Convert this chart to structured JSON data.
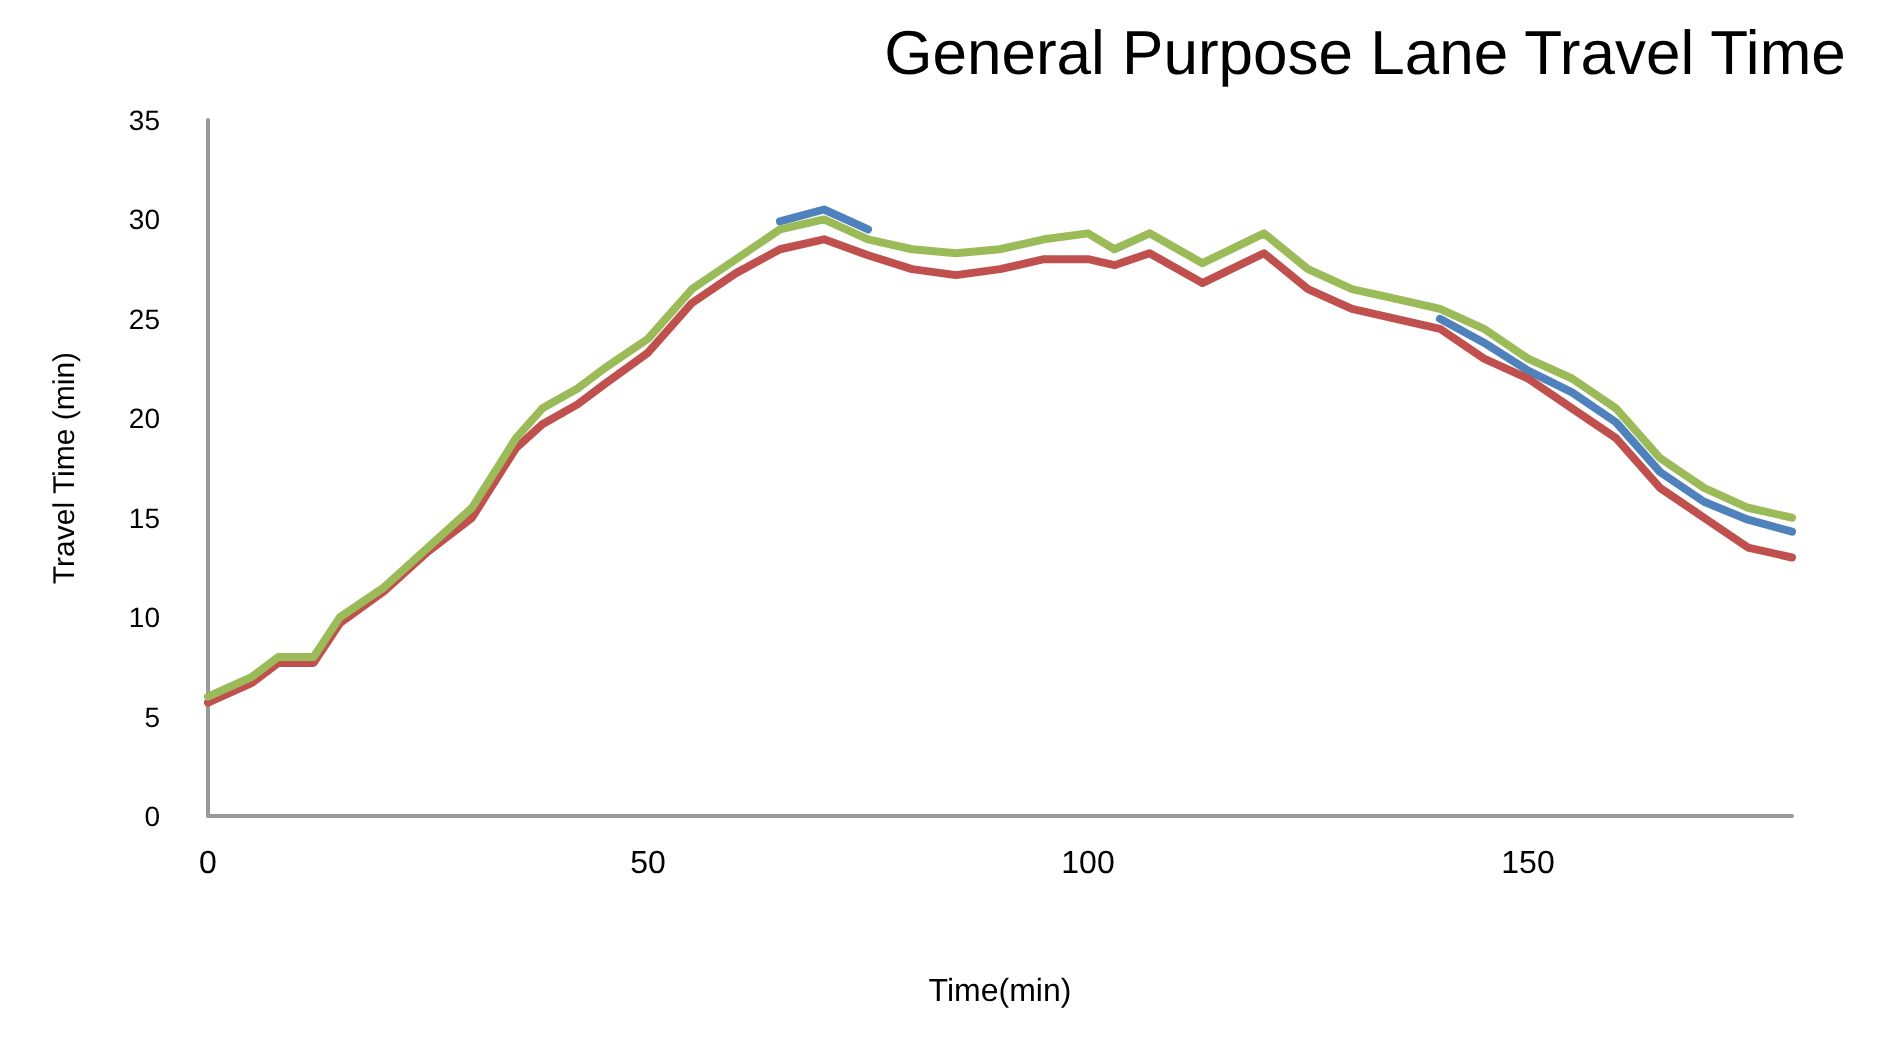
{
  "chart_data": {
    "type": "line",
    "title": "General Purpose Lane Travel Time",
    "xlabel": "Time(min)",
    "ylabel": "Travel Time (min)",
    "x": [
      0,
      5,
      8,
      12,
      15,
      20,
      25,
      30,
      35,
      38,
      42,
      45,
      50,
      55,
      60,
      65,
      70,
      75,
      80,
      85,
      90,
      95,
      100,
      103,
      107,
      113,
      120,
      125,
      130,
      135,
      140,
      145,
      150,
      155,
      160,
      165,
      170,
      175,
      180
    ],
    "series": [
      {
        "color": "#4f81bd",
        "values": [
          null,
          null,
          null,
          null,
          null,
          null,
          null,
          null,
          null,
          null,
          null,
          null,
          null,
          null,
          null,
          29.9,
          30.5,
          29.5,
          null,
          null,
          null,
          null,
          null,
          null,
          null,
          null,
          null,
          null,
          null,
          null,
          25,
          23.8,
          22.4,
          21.3,
          19.8,
          17.3,
          15.8,
          14.9,
          14.3
        ]
      },
      {
        "color": "#c0504d",
        "values": [
          5.7,
          6.7,
          7.7,
          7.7,
          9.7,
          11.3,
          13.3,
          15,
          18.5,
          19.7,
          20.7,
          21.7,
          23.3,
          25.8,
          27.3,
          28.5,
          29,
          28.2,
          27.5,
          27.2,
          27.5,
          28,
          28,
          27.7,
          28.3,
          26.8,
          28.3,
          26.5,
          25.5,
          25,
          24.5,
          23,
          22,
          20.5,
          19,
          16.5,
          15,
          13.5,
          13
        ]
      },
      {
        "color": "#9bbb59",
        "values": [
          6,
          7,
          8,
          8,
          10,
          11.5,
          13.5,
          15.5,
          19,
          20.5,
          21.5,
          22.5,
          24,
          26.5,
          28,
          29.5,
          30,
          29,
          28.5,
          28.3,
          28.5,
          29,
          29.3,
          28.5,
          29.3,
          27.8,
          29.3,
          27.5,
          26.5,
          26,
          25.5,
          24.5,
          23,
          22,
          20.5,
          18,
          16.5,
          15.5,
          15
        ]
      }
    ],
    "xlim": [
      0,
      180
    ],
    "xticks": [
      0,
      50,
      100,
      150
    ],
    "ylim": [
      0,
      35
    ],
    "yticks": [
      0,
      5,
      10,
      15,
      20,
      25,
      30,
      35
    ],
    "grid": false,
    "marker": "none",
    "line_style": "solid"
  }
}
